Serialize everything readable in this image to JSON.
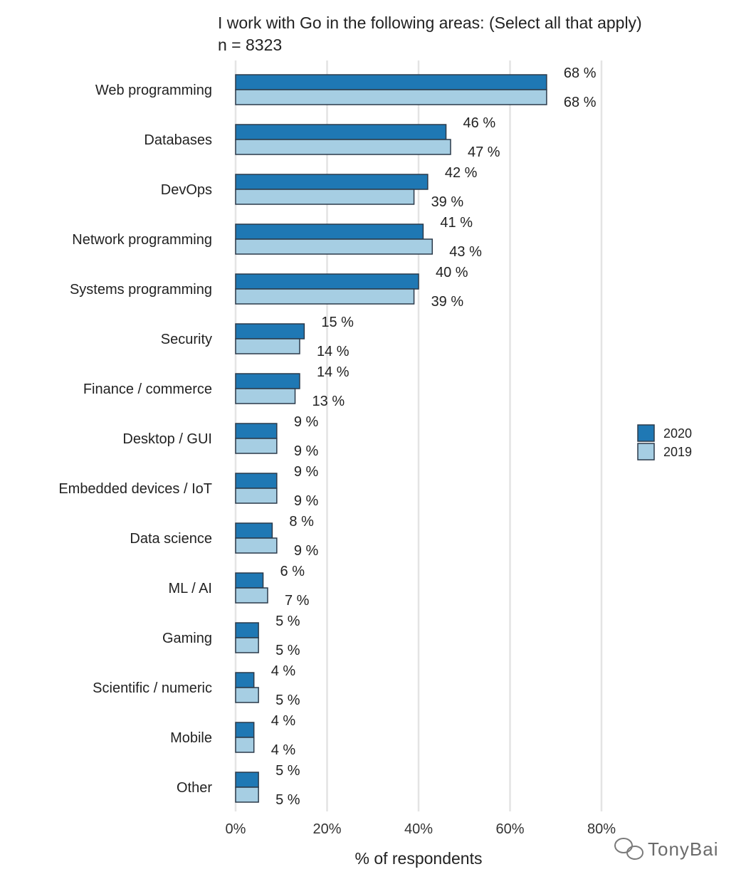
{
  "chart_data": {
    "type": "bar",
    "orientation": "horizontal",
    "title": "I work with Go in the following areas: (Select all that apply)",
    "subtitle": "n = 8323",
    "xlabel": "% of respondents",
    "ylabel": "",
    "xlim": [
      0,
      80
    ],
    "xticks": [
      0,
      20,
      40,
      60,
      80
    ],
    "xtick_labels": [
      "0%",
      "20%",
      "40%",
      "60%",
      "80%"
    ],
    "grid": true,
    "legend_position": "right",
    "categories": [
      "Web programming",
      "Databases",
      "DevOps",
      "Network programming",
      "Systems programming",
      "Security",
      "Finance / commerce",
      "Desktop / GUI",
      "Embedded devices / IoT",
      "Data science",
      "ML / AI",
      "Gaming",
      "Scientific / numeric",
      "Mobile",
      "Other"
    ],
    "series": [
      {
        "name": "2020",
        "color": "#1f78b4",
        "values": [
          68,
          46,
          42,
          41,
          40,
          15,
          14,
          9,
          9,
          8,
          6,
          5,
          4,
          4,
          5
        ]
      },
      {
        "name": "2019",
        "color": "#a6cee3",
        "values": [
          68,
          47,
          39,
          43,
          39,
          14,
          13,
          9,
          9,
          9,
          7,
          5,
          5,
          4,
          5
        ]
      }
    ],
    "value_label_suffix": " %"
  },
  "watermark": "TonyBai"
}
